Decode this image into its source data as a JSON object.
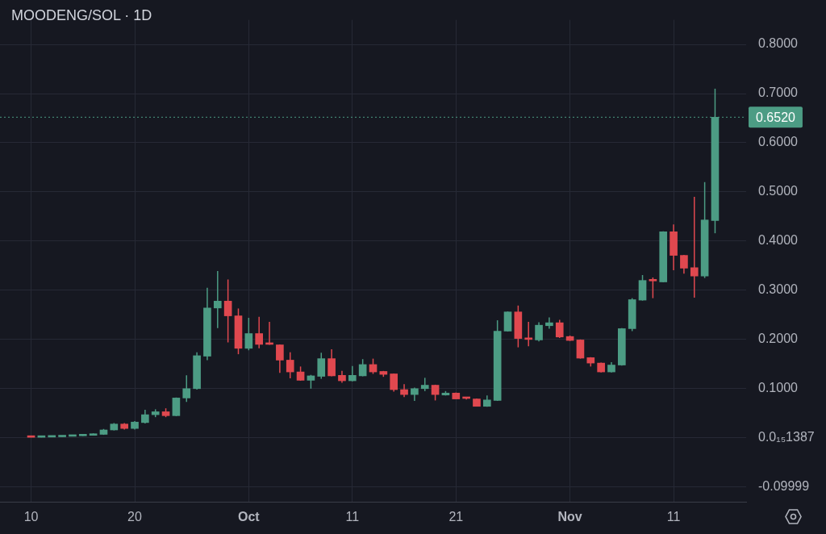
{
  "chart_data": {
    "type": "candlestick",
    "title": "MOODENG/SOL · 1D",
    "x": [
      "--09-10",
      "--09-11",
      "--09-12",
      "--09-13",
      "--09-14",
      "--09-15",
      "--09-16",
      "--09-17",
      "--09-18",
      "--09-19",
      "--09-20",
      "--09-21",
      "--09-22",
      "--09-23",
      "--09-24",
      "--09-25",
      "--09-26",
      "--09-27",
      "--09-28",
      "--09-29",
      "--09-30",
      "--10-01",
      "--10-02",
      "--10-03",
      "--10-04",
      "--10-05",
      "--10-06",
      "--10-07",
      "--10-08",
      "--10-09",
      "--10-10",
      "--10-11",
      "--10-12",
      "--10-13",
      "--10-14",
      "--10-15",
      "--10-16",
      "--10-17",
      "--10-18",
      "--10-19",
      "--10-20",
      "--10-21",
      "--10-22",
      "--10-23",
      "--10-24",
      "--10-25",
      "--10-26",
      "--10-27",
      "--10-28",
      "--10-29",
      "--10-30",
      "--10-31",
      "--11-01",
      "--11-02",
      "--11-03",
      "--11-04",
      "--11-05",
      "--11-06",
      "--11-07",
      "--11-08",
      "--11-09",
      "--11-10",
      "--11-11",
      "--11-12",
      "--11-13",
      "--11-14",
      "--11-15"
    ],
    "ohlc": [
      [
        0.0015,
        0.0016,
        0.0009,
        0.001
      ],
      [
        0.001,
        0.0016,
        0.0009,
        0.0015
      ],
      [
        0.0015,
        0.0021,
        0.0014,
        0.002
      ],
      [
        0.002,
        0.0032,
        0.0019,
        0.003
      ],
      [
        0.003,
        0.0042,
        0.0029,
        0.004
      ],
      [
        0.004,
        0.006,
        0.0039,
        0.005
      ],
      [
        0.005,
        0.009,
        0.0049,
        0.007
      ],
      [
        0.007,
        0.018,
        0.006,
        0.016
      ],
      [
        0.016,
        0.03,
        0.015,
        0.028
      ],
      [
        0.028,
        0.03,
        0.017,
        0.019
      ],
      [
        0.019,
        0.034,
        0.017,
        0.032
      ],
      [
        0.031,
        0.057,
        0.029,
        0.047
      ],
      [
        0.047,
        0.058,
        0.042,
        0.053
      ],
      [
        0.053,
        0.06,
        0.042,
        0.045
      ],
      [
        0.045,
        0.082,
        0.044,
        0.081
      ],
      [
        0.081,
        0.127,
        0.073,
        0.1
      ],
      [
        0.1,
        0.174,
        0.098,
        0.167
      ],
      [
        0.166,
        0.305,
        0.158,
        0.264
      ],
      [
        0.264,
        0.339,
        0.223,
        0.278
      ],
      [
        0.278,
        0.322,
        0.194,
        0.248
      ],
      [
        0.248,
        0.263,
        0.17,
        0.182
      ],
      [
        0.182,
        0.244,
        0.178,
        0.212
      ],
      [
        0.212,
        0.246,
        0.182,
        0.19
      ],
      [
        0.191,
        0.236,
        0.189,
        0.19
      ],
      [
        0.189,
        0.19,
        0.132,
        0.158
      ],
      [
        0.158,
        0.174,
        0.121,
        0.134
      ],
      [
        0.134,
        0.145,
        0.116,
        0.117
      ],
      [
        0.117,
        0.128,
        0.1,
        0.126
      ],
      [
        0.125,
        0.173,
        0.12,
        0.161
      ],
      [
        0.161,
        0.18,
        0.125,
        0.126
      ],
      [
        0.127,
        0.136,
        0.112,
        0.116
      ],
      [
        0.116,
        0.146,
        0.115,
        0.127
      ],
      [
        0.126,
        0.16,
        0.125,
        0.149
      ],
      [
        0.149,
        0.161,
        0.13,
        0.134
      ],
      [
        0.135,
        0.136,
        0.124,
        0.129
      ],
      [
        0.13,
        0.131,
        0.094,
        0.098
      ],
      [
        0.098,
        0.109,
        0.083,
        0.088
      ],
      [
        0.088,
        0.102,
        0.075,
        0.1
      ],
      [
        0.1,
        0.122,
        0.095,
        0.107
      ],
      [
        0.107,
        0.108,
        0.076,
        0.088
      ],
      [
        0.087,
        0.095,
        0.086,
        0.091
      ],
      [
        0.091,
        0.092,
        0.079,
        0.079
      ],
      [
        0.081,
        0.083,
        0.078,
        0.08
      ],
      [
        0.079,
        0.08,
        0.064,
        0.064
      ],
      [
        0.064,
        0.086,
        0.063,
        0.077
      ],
      [
        0.076,
        0.239,
        0.075,
        0.217
      ],
      [
        0.217,
        0.257,
        0.216,
        0.256
      ],
      [
        0.256,
        0.269,
        0.184,
        0.202
      ],
      [
        0.202,
        0.236,
        0.186,
        0.2
      ],
      [
        0.199,
        0.235,
        0.196,
        0.229
      ],
      [
        0.228,
        0.245,
        0.222,
        0.234
      ],
      [
        0.234,
        0.24,
        0.203,
        0.205
      ],
      [
        0.206,
        0.208,
        0.197,
        0.198
      ],
      [
        0.199,
        0.2,
        0.161,
        0.162
      ],
      [
        0.163,
        0.164,
        0.145,
        0.152
      ],
      [
        0.152,
        0.153,
        0.133,
        0.134
      ],
      [
        0.134,
        0.154,
        0.133,
        0.148
      ],
      [
        0.148,
        0.223,
        0.147,
        0.222
      ],
      [
        0.222,
        0.284,
        0.217,
        0.281
      ],
      [
        0.28,
        0.331,
        0.279,
        0.32
      ],
      [
        0.32,
        0.326,
        0.284,
        0.319
      ],
      [
        0.317,
        0.42,
        0.316,
        0.419
      ],
      [
        0.419,
        0.434,
        0.341,
        0.371
      ],
      [
        0.371,
        0.372,
        0.334,
        0.345
      ],
      [
        0.346,
        0.49,
        0.285,
        0.329
      ],
      [
        0.329,
        0.52,
        0.325,
        0.443
      ],
      [
        0.442,
        0.71,
        0.416,
        0.652
      ]
    ],
    "colors": [
      "#e0484f",
      "#4c9c84",
      "#4c9c84",
      "#4c9c84",
      "#4c9c84",
      "#4c9c84",
      "#4c9c84",
      "#4c9c84",
      "#4c9c84",
      "#e0484f",
      "#4c9c84",
      "#4c9c84",
      "#4c9c84",
      "#e0484f",
      "#4c9c84",
      "#4c9c84",
      "#4c9c84",
      "#4c9c84",
      "#4c9c84",
      "#e0484f",
      "#e0484f",
      "#4c9c84",
      "#e0484f",
      "#e0484f",
      "#e0484f",
      "#e0484f",
      "#e0484f",
      "#4c9c84",
      "#4c9c84",
      "#e0484f",
      "#e0484f",
      "#4c9c84",
      "#4c9c84",
      "#e0484f",
      "#e0484f",
      "#e0484f",
      "#e0484f",
      "#4c9c84",
      "#4c9c84",
      "#e0484f",
      "#4c9c84",
      "#e0484f",
      "#e0484f",
      "#e0484f",
      "#4c9c84",
      "#4c9c84",
      "#4c9c84",
      "#e0484f",
      "#e0484f",
      "#4c9c84",
      "#4c9c84",
      "#e0484f",
      "#e0484f",
      "#e0484f",
      "#e0484f",
      "#e0484f",
      "#4c9c84",
      "#4c9c84",
      "#4c9c84",
      "#4c9c84",
      "#e0484f",
      "#4c9c84",
      "#e0484f",
      "#e0484f",
      "#e0484f",
      "#4c9c84",
      "#4c9c84"
    ],
    "xlim": [
      "--09-07",
      "--11-18"
    ],
    "xticks": [
      {
        "value": "--09-10",
        "label": "10"
      },
      {
        "value": "--09-20",
        "label": "20"
      },
      {
        "value": "--10-01",
        "label": "Oct"
      },
      {
        "value": "--10-11",
        "label": "11"
      },
      {
        "value": "--10-21",
        "label": "21"
      },
      {
        "value": "--11-01",
        "label": "Nov"
      },
      {
        "value": "--11-11",
        "label": "11"
      }
    ],
    "ylim": [
      -0.13,
      0.85
    ],
    "yticks": [
      {
        "value": -0.09999,
        "label": "-0.09999"
      },
      {
        "value": 0,
        "label": "0.0₁₅1387"
      },
      {
        "value": 0.1,
        "label": "0.1000"
      },
      {
        "value": 0.2,
        "label": "0.2000"
      },
      {
        "value": 0.3,
        "label": "0.3000"
      },
      {
        "value": 0.4,
        "label": "0.4000"
      },
      {
        "value": 0.5,
        "label": "0.5000"
      },
      {
        "value": 0.6,
        "label": "0.6000"
      },
      {
        "value": 0.7,
        "label": "0.7000"
      },
      {
        "value": 0.8,
        "label": "0.8000"
      }
    ],
    "grid": true,
    "ref_lines": [
      {
        "axis": "y",
        "value": 0.652,
        "label": "0.6520",
        "color": "#4c9c84",
        "line_style": "dotted"
      }
    ]
  }
}
